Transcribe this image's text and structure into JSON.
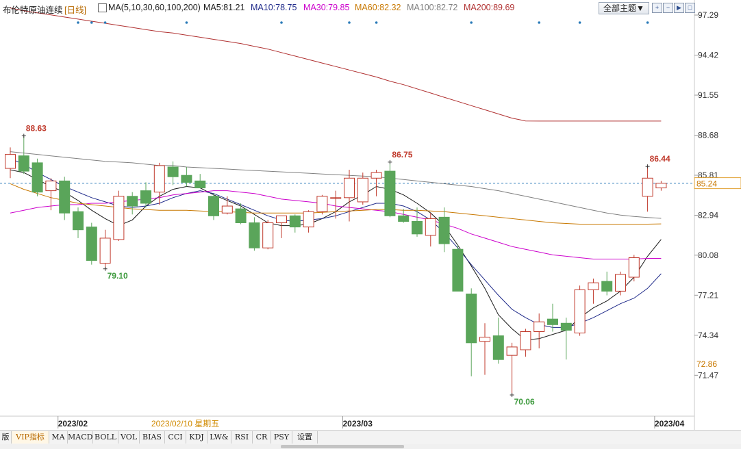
{
  "header": {
    "title": "布伦特原油连续",
    "period": "[日线]",
    "ma_params": "MA(5,10,30,60,100,200)",
    "ma_values": [
      {
        "label": "MA5:81.21",
        "color": "#1a1a1a"
      },
      {
        "label": "MA10:78.75",
        "color": "#1f2a8a"
      },
      {
        "label": "MA30:79.85",
        "color": "#cc00cc"
      },
      {
        "label": "MA60:82.32",
        "color": "#c87800"
      },
      {
        "label": "MA100:82.72",
        "color": "#808080"
      },
      {
        "label": "MA200:89.69",
        "color": "#b03030"
      }
    ]
  },
  "toolbar": {
    "theme_label": "全部主题▼",
    "icons": [
      "zoom-in-icon",
      "zoom-out-icon",
      "play-icon",
      "fullscreen-icon"
    ]
  },
  "colors": {
    "up": "#c0392b",
    "down": "#5aa55a",
    "ma5": "#1a1a1a",
    "ma10": "#1f2a8a",
    "ma30": "#cc00cc",
    "ma60": "#c87800",
    "ma100": "#808080",
    "ma200": "#b03030"
  },
  "chart_data": {
    "type": "candlestick",
    "y_ticks": [
      "97.29",
      "94.42",
      "91.55",
      "88.68",
      "85.81",
      "82.94",
      "80.08",
      "77.21",
      "74.34",
      "71.47"
    ],
    "ylim": [
      69.2,
      98.3
    ],
    "current_price": "85.24",
    "ma60_axis_label": "72.86",
    "x_labels": [
      {
        "label": "2023/02",
        "index": 4
      },
      {
        "label": "2023/02/10 星期五",
        "index": 12,
        "highlight": true
      },
      {
        "label": "2023/03",
        "index": 25
      },
      {
        "label": "2023/04",
        "index": 48
      }
    ],
    "annotations": [
      {
        "label": "88.63",
        "index": 1,
        "value": 88.63,
        "kind": "high"
      },
      {
        "label": "79.10",
        "index": 7,
        "value": 79.1,
        "kind": "low"
      },
      {
        "label": "86.75",
        "index": 28,
        "value": 86.75,
        "kind": "high"
      },
      {
        "label": "70.06",
        "index": 37,
        "value": 70.06,
        "kind": "low"
      },
      {
        "label": "86.44",
        "index": 47,
        "value": 86.44,
        "kind": "high"
      }
    ],
    "event_markers": [
      5,
      6,
      7,
      13,
      20,
      25,
      27,
      34,
      39,
      42,
      47
    ],
    "candles": [
      {
        "o": 86.3,
        "h": 87.8,
        "l": 85.6,
        "c": 87.3
      },
      {
        "o": 87.2,
        "h": 88.63,
        "l": 85.9,
        "c": 86.1
      },
      {
        "o": 86.7,
        "h": 87.0,
        "l": 84.3,
        "c": 84.6
      },
      {
        "o": 84.7,
        "h": 85.6,
        "l": 83.3,
        "c": 85.4
      },
      {
        "o": 85.4,
        "h": 85.7,
        "l": 82.6,
        "c": 83.1
      },
      {
        "o": 83.2,
        "h": 83.5,
        "l": 81.3,
        "c": 81.9
      },
      {
        "o": 82.1,
        "h": 82.4,
        "l": 79.4,
        "c": 79.7
      },
      {
        "o": 79.5,
        "h": 81.9,
        "l": 79.1,
        "c": 81.3
      },
      {
        "o": 81.2,
        "h": 84.7,
        "l": 81.1,
        "c": 84.3
      },
      {
        "o": 84.3,
        "h": 84.6,
        "l": 83.0,
        "c": 83.6
      },
      {
        "o": 84.7,
        "h": 85.3,
        "l": 83.5,
        "c": 83.8
      },
      {
        "o": 84.6,
        "h": 86.7,
        "l": 83.7,
        "c": 86.5
      },
      {
        "o": 86.4,
        "h": 86.8,
        "l": 85.1,
        "c": 85.7
      },
      {
        "o": 85.8,
        "h": 86.4,
        "l": 85.0,
        "c": 85.3
      },
      {
        "o": 85.4,
        "h": 85.9,
        "l": 84.9,
        "c": 84.9
      },
      {
        "o": 84.3,
        "h": 84.5,
        "l": 82.6,
        "c": 82.9
      },
      {
        "o": 83.1,
        "h": 84.3,
        "l": 83.0,
        "c": 83.6
      },
      {
        "o": 83.4,
        "h": 83.8,
        "l": 82.3,
        "c": 82.4
      },
      {
        "o": 82.4,
        "h": 82.8,
        "l": 80.4,
        "c": 80.6
      },
      {
        "o": 80.6,
        "h": 82.6,
        "l": 80.5,
        "c": 82.4
      },
      {
        "o": 82.4,
        "h": 82.9,
        "l": 81.3,
        "c": 82.9
      },
      {
        "o": 82.9,
        "h": 83.0,
        "l": 81.7,
        "c": 82.1
      },
      {
        "o": 82.1,
        "h": 83.3,
        "l": 81.7,
        "c": 83.2
      },
      {
        "o": 83.2,
        "h": 84.4,
        "l": 83.0,
        "c": 84.3
      },
      {
        "o": 84.2,
        "h": 84.7,
        "l": 82.7,
        "c": 84.2
      },
      {
        "o": 84.2,
        "h": 86.2,
        "l": 82.5,
        "c": 85.6
      },
      {
        "o": 83.9,
        "h": 86.0,
        "l": 83.7,
        "c": 85.6
      },
      {
        "o": 85.6,
        "h": 86.2,
        "l": 84.3,
        "c": 86.0
      },
      {
        "o": 86.1,
        "h": 86.75,
        "l": 82.8,
        "c": 82.9
      },
      {
        "o": 82.9,
        "h": 83.4,
        "l": 82.4,
        "c": 82.5
      },
      {
        "o": 82.5,
        "h": 83.5,
        "l": 81.4,
        "c": 81.6
      },
      {
        "o": 81.5,
        "h": 83.1,
        "l": 80.7,
        "c": 82.7
      },
      {
        "o": 82.8,
        "h": 83.5,
        "l": 80.3,
        "c": 80.9
      },
      {
        "o": 80.5,
        "h": 80.8,
        "l": 77.7,
        "c": 77.5
      },
      {
        "o": 77.3,
        "h": 77.7,
        "l": 71.4,
        "c": 73.8
      },
      {
        "o": 73.9,
        "h": 75.2,
        "l": 71.5,
        "c": 74.2
      },
      {
        "o": 74.3,
        "h": 75.6,
        "l": 72.3,
        "c": 72.6
      },
      {
        "o": 72.9,
        "h": 73.8,
        "l": 70.06,
        "c": 73.5
      },
      {
        "o": 73.3,
        "h": 74.8,
        "l": 72.8,
        "c": 74.6
      },
      {
        "o": 74.6,
        "h": 75.9,
        "l": 73.4,
        "c": 75.3
      },
      {
        "o": 75.5,
        "h": 76.6,
        "l": 74.6,
        "c": 75.1
      },
      {
        "o": 75.2,
        "h": 75.6,
        "l": 72.6,
        "c": 74.7
      },
      {
        "o": 74.5,
        "h": 77.9,
        "l": 74.3,
        "c": 77.6
      },
      {
        "o": 77.6,
        "h": 78.4,
        "l": 76.6,
        "c": 78.1
      },
      {
        "o": 78.2,
        "h": 78.9,
        "l": 77.2,
        "c": 77.5
      },
      {
        "o": 77.5,
        "h": 78.9,
        "l": 77.2,
        "c": 78.7
      },
      {
        "o": 78.5,
        "h": 80.1,
        "l": 78.2,
        "c": 79.9
      },
      {
        "o": 84.3,
        "h": 86.44,
        "l": 83.2,
        "c": 85.6
      },
      {
        "o": 84.9,
        "h": 85.4,
        "l": 84.7,
        "c": 85.24
      }
    ],
    "ma_lines": {
      "ma5": [
        86.2,
        86.0,
        85.5,
        85.0,
        84.6,
        84.0,
        83.3,
        82.7,
        82.2,
        82.6,
        83.6,
        84.3,
        84.8,
        85.0,
        84.9,
        84.4,
        84.0,
        83.6,
        83.0,
        82.4,
        82.2,
        82.2,
        82.3,
        82.7,
        83.2,
        83.9,
        84.4,
        85.0,
        84.8,
        84.4,
        83.8,
        83.1,
        82.2,
        80.8,
        79.3,
        77.7,
        75.8,
        74.8,
        74.0,
        74.1,
        74.4,
        74.7,
        75.6,
        76.3,
        76.8,
        77.5,
        78.5,
        80.0,
        81.21
      ],
      "ma10": [
        87.0,
        86.6,
        86.0,
        85.5,
        85.0,
        84.6,
        84.2,
        83.9,
        83.6,
        83.5,
        83.6,
        83.8,
        84.2,
        84.5,
        84.7,
        84.5,
        84.1,
        83.7,
        83.3,
        82.9,
        82.6,
        82.5,
        82.6,
        82.7,
        82.9,
        83.2,
        83.5,
        83.8,
        83.8,
        83.6,
        83.2,
        82.6,
        81.7,
        80.6,
        79.4,
        78.3,
        77.2,
        76.2,
        75.6,
        75.1,
        74.9,
        74.9,
        75.2,
        75.6,
        76.1,
        76.6,
        77.0,
        77.7,
        78.75
      ],
      "ma30": [
        83.1,
        83.3,
        83.5,
        83.6,
        83.7,
        83.7,
        83.8,
        83.8,
        83.9,
        84.0,
        84.1,
        84.2,
        84.4,
        84.5,
        84.6,
        84.7,
        84.7,
        84.6,
        84.5,
        84.3,
        84.1,
        84.0,
        83.9,
        83.8,
        83.6,
        83.5,
        83.4,
        83.3,
        83.2,
        83.0,
        82.8,
        82.6,
        82.3,
        82.0,
        81.6,
        81.3,
        81.0,
        80.7,
        80.5,
        80.3,
        80.1,
        80.0,
        79.9,
        79.8,
        79.8,
        79.8,
        79.8,
        79.85,
        79.85
      ],
      "ma60": [
        85.2,
        84.8,
        84.5,
        84.2,
        84.0,
        83.8,
        83.7,
        83.6,
        83.5,
        83.4,
        83.35,
        83.3,
        83.3,
        83.3,
        83.25,
        83.2,
        83.2,
        83.15,
        83.1,
        83.1,
        83.1,
        83.1,
        83.1,
        83.15,
        83.2,
        83.25,
        83.3,
        83.35,
        83.35,
        83.3,
        83.3,
        83.25,
        83.2,
        83.1,
        83.0,
        82.9,
        82.8,
        82.7,
        82.6,
        82.5,
        82.4,
        82.35,
        82.3,
        82.3,
        82.3,
        82.3,
        82.3,
        82.3,
        82.32
      ],
      "ma100": [
        87.5,
        87.4,
        87.3,
        87.2,
        87.1,
        87.0,
        86.9,
        86.8,
        86.75,
        86.7,
        86.6,
        86.5,
        86.5,
        86.4,
        86.35,
        86.3,
        86.25,
        86.2,
        86.15,
        86.1,
        86.05,
        86.0,
        85.95,
        85.9,
        85.85,
        85.8,
        85.75,
        85.7,
        85.6,
        85.5,
        85.4,
        85.3,
        85.2,
        85.1,
        85.0,
        84.85,
        84.7,
        84.5,
        84.3,
        84.1,
        83.9,
        83.7,
        83.5,
        83.3,
        83.1,
        82.95,
        82.85,
        82.78,
        82.72
      ],
      "ma200": [
        97.8,
        97.6,
        97.45,
        97.3,
        97.15,
        97.0,
        96.85,
        96.7,
        96.55,
        96.4,
        96.25,
        96.1,
        96.0,
        95.85,
        95.7,
        95.55,
        95.4,
        95.25,
        95.05,
        94.85,
        94.6,
        94.35,
        94.1,
        93.85,
        93.6,
        93.35,
        93.1,
        92.85,
        92.55,
        92.3,
        92.0,
        91.7,
        91.4,
        91.1,
        90.8,
        90.5,
        90.2,
        89.9,
        89.7,
        89.69,
        89.69,
        89.69,
        89.69,
        89.69,
        89.69,
        89.69,
        89.69,
        89.69,
        89.69
      ]
    }
  },
  "tabs": {
    "items": [
      "版",
      "VIP指标",
      "MA",
      "MACD",
      "BOLL",
      "VOL",
      "BIAS",
      "CCI",
      "KDJ",
      "LW&",
      "RSI",
      "CR",
      "PSY",
      "设置"
    ]
  }
}
